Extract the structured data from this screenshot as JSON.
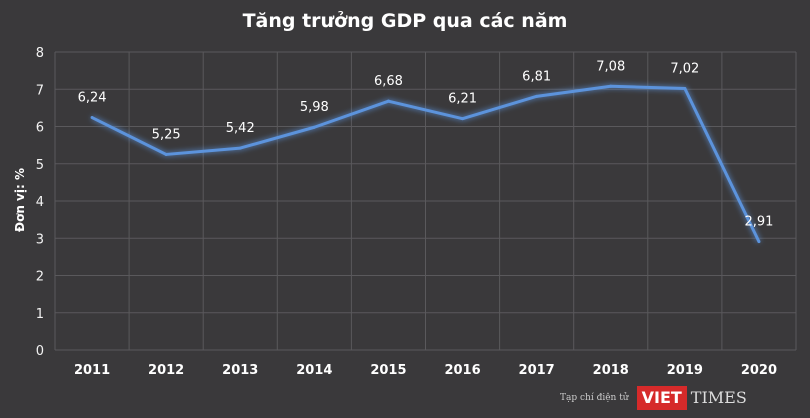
{
  "chart_data": {
    "type": "line",
    "title": "Tăng trưởng GDP qua các năm",
    "xlabel": "",
    "ylabel": "Đơn vị: %",
    "categories": [
      "2011",
      "2012",
      "2013",
      "2014",
      "2015",
      "2016",
      "2017",
      "2018",
      "2019",
      "2020"
    ],
    "values": [
      6.24,
      5.25,
      5.42,
      5.98,
      6.68,
      6.21,
      6.81,
      7.08,
      7.02,
      2.91
    ],
    "data_labels": [
      "6,24",
      "5,25",
      "5,42",
      "5,98",
      "6,68",
      "6,21",
      "6,81",
      "7,08",
      "7,02",
      "2,91"
    ],
    "ylim": [
      0,
      8
    ],
    "yticks": [
      "0",
      "1",
      "2",
      "3",
      "4",
      "5",
      "6",
      "7",
      "8"
    ],
    "grid": true,
    "colors": {
      "line": "#5b93dc",
      "background": "#3a393b",
      "grid": "#5a595c"
    }
  },
  "watermark": {
    "tagline": "Tạp chí điện tử",
    "brand_left": "VIET",
    "brand_right": "TIMES",
    "brand_color": "#d62a2a"
  }
}
